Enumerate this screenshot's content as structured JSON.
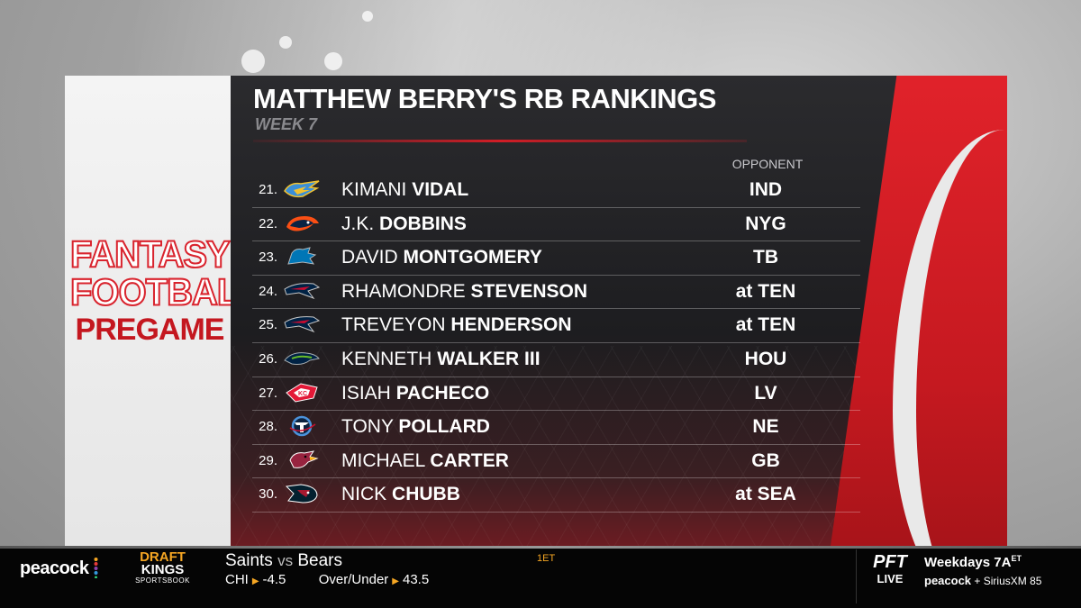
{
  "graphic": {
    "title": "MATTHEW BERRY'S RB RANKINGS",
    "subtitle": "WEEK 7",
    "opponent_header": "OPPONENT",
    "logo_lines": [
      "FANTASY",
      "FOOTBALL",
      "PREGAME"
    ]
  },
  "rankings": [
    {
      "rank": "21.",
      "first": "KIMANI",
      "last": "VIDAL",
      "opponent": "IND",
      "team_icon": "chargers-logo-icon"
    },
    {
      "rank": "22.",
      "first": "J.K.",
      "last": "DOBBINS",
      "opponent": "NYG",
      "team_icon": "broncos-logo-icon"
    },
    {
      "rank": "23.",
      "first": "DAVID",
      "last": "MONTGOMERY",
      "opponent": "TB",
      "team_icon": "lions-logo-icon"
    },
    {
      "rank": "24.",
      "first": "RHAMONDRE",
      "last": "STEVENSON",
      "opponent": "at TEN",
      "team_icon": "patriots-logo-icon"
    },
    {
      "rank": "25.",
      "first": "TREVEYON",
      "last": "HENDERSON",
      "opponent": "at TEN",
      "team_icon": "patriots-logo-icon"
    },
    {
      "rank": "26.",
      "first": "KENNETH",
      "last": "WALKER III",
      "opponent": "HOU",
      "team_icon": "seahawks-logo-icon"
    },
    {
      "rank": "27.",
      "first": "ISIAH",
      "last": "PACHECO",
      "opponent": "LV",
      "team_icon": "chiefs-logo-icon"
    },
    {
      "rank": "28.",
      "first": "TONY",
      "last": "POLLARD",
      "opponent": "NE",
      "team_icon": "titans-logo-icon"
    },
    {
      "rank": "29.",
      "first": "MICHAEL",
      "last": "CARTER",
      "opponent": "GB",
      "team_icon": "cardinals-logo-icon"
    },
    {
      "rank": "30.",
      "first": "NICK",
      "last": "CHUBB",
      "opponent": "at SEA",
      "team_icon": "texans-logo-icon"
    }
  ],
  "ticker": {
    "network": "peacock",
    "sponsor_lines": [
      "DRAFT",
      "KINGS",
      "SPORTSBOOK"
    ],
    "team_a": "Saints",
    "vs": "vs",
    "team_b": "Bears",
    "spread_team": "CHI",
    "spread": "-4.5",
    "ou_label": "Over/Under",
    "ou_value": "43.5",
    "quarter": "1ET",
    "pft_line1": "PFT",
    "pft_line2": "LIVE",
    "show_time": "Weekdays 7A",
    "show_time_sup": "ET",
    "show_networks": "peacock",
    "show_networks_2": "+ SiriusXM 85"
  },
  "colors": {
    "accent_red": "#d11d26",
    "panel_dark": "#1d1d20",
    "draftkings_orange": "#f5a623"
  }
}
